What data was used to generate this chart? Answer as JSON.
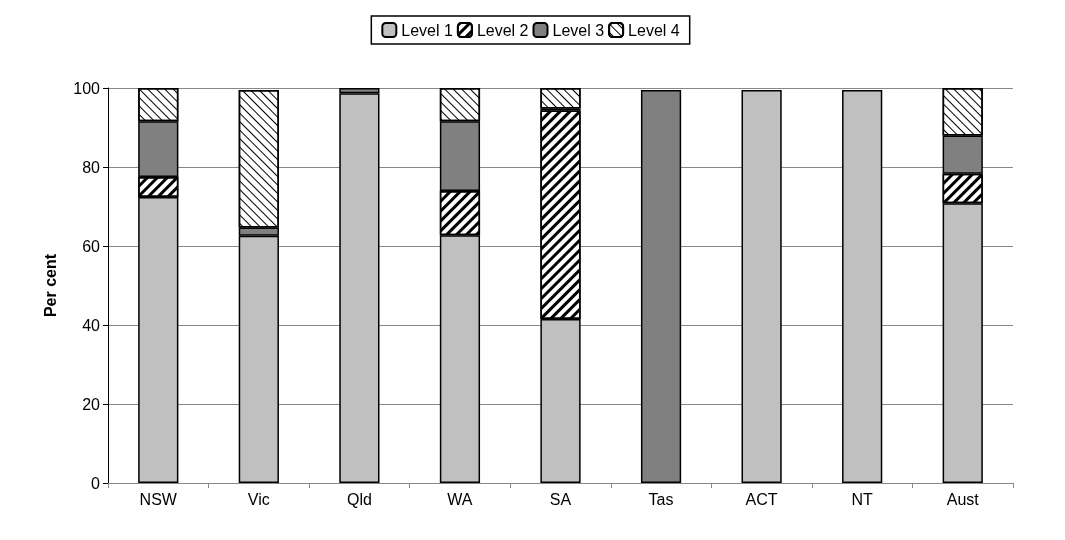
{
  "chart_data": {
    "type": "bar",
    "stacked": true,
    "ylabel": "Per cent",
    "categories": [
      "NSW",
      "Vic",
      "Qld",
      "WA",
      "SA",
      "Tas",
      "ACT",
      "NT",
      "Aust"
    ],
    "series": [
      {
        "name": "Level 1",
        "color": "#c0c0c0",
        "values": [
          72.4,
          62.6,
          98.7,
          62.7,
          41.5,
          0,
          99.5,
          99.5,
          70.8
        ]
      },
      {
        "name": "Level 2",
        "color": "#ffffff",
        "values": [
          5.1,
          null,
          0,
          11.2,
          52.8,
          0,
          0,
          0,
          7.5
        ]
      },
      {
        "name": "Level 3",
        "color": "#808080",
        "values": [
          14.1,
          2.1,
          1.3,
          17.7,
          0.5,
          99.5,
          0,
          0,
          9.7
        ]
      },
      {
        "name": "Level 4",
        "color": "#ffffff",
        "values": [
          8.4,
          34.8,
          0,
          8.4,
          5.2,
          0,
          0,
          0,
          12
        ]
      }
    ],
    "ylim": [
      0,
      100
    ],
    "yticks": [
      0,
      20,
      40,
      60,
      80,
      100
    ],
    "grid": "y",
    "legend": "top"
  }
}
